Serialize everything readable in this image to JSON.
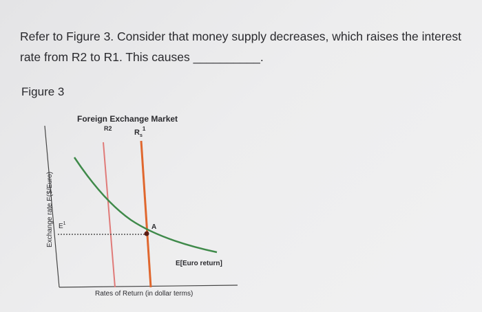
{
  "question": {
    "line1": "Refer to Figure 3. Consider that money supply decreases, which raises the interest",
    "line2": "rate from R2 to R1. This causes __________."
  },
  "figure_label": "Figure 3",
  "diagram": {
    "title": "Foreign Exchange Market",
    "y_axis_label": "Exchange rate E($/Euro)",
    "x_axis_label": "Rates of Return (in dollar terms)",
    "r2_label": "R2",
    "r1_label": "R",
    "r1_subscript": "s",
    "r1_superscript": "1",
    "e1_label": "E",
    "e1_superscript": "1",
    "point_label": "A",
    "curve_label": "E[Euro return]",
    "colors": {
      "r2_line": "#e07a78",
      "r1_line": "#e0672e",
      "curve": "#3f8a4a",
      "point": "#5a1c12"
    }
  }
}
